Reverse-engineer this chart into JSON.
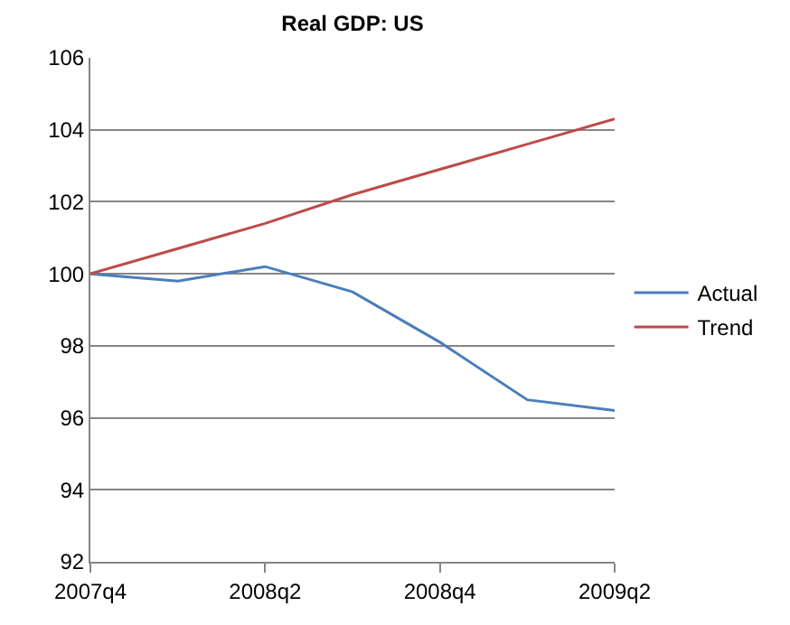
{
  "chart_data": {
    "type": "line",
    "title": "Real GDP: US",
    "categories": [
      "2007q4",
      null,
      "2008q2",
      null,
      "2008q4",
      null,
      "2009q2"
    ],
    "series": [
      {
        "name": "Actual",
        "color": "#4a7ebb",
        "values": [
          100,
          99.8,
          100.2,
          99.5,
          98.1,
          96.5,
          96.2
        ]
      },
      {
        "name": "Trend",
        "color": "#be4b48",
        "values": [
          100,
          100.7,
          101.4,
          102.2,
          102.9,
          103.6,
          104.3
        ]
      }
    ],
    "ylim": [
      92,
      106
    ],
    "yticks": [
      92,
      94,
      96,
      98,
      100,
      102,
      104,
      106
    ],
    "grid": "y",
    "legend": "right",
    "marker": "none",
    "line_style": "solid"
  }
}
